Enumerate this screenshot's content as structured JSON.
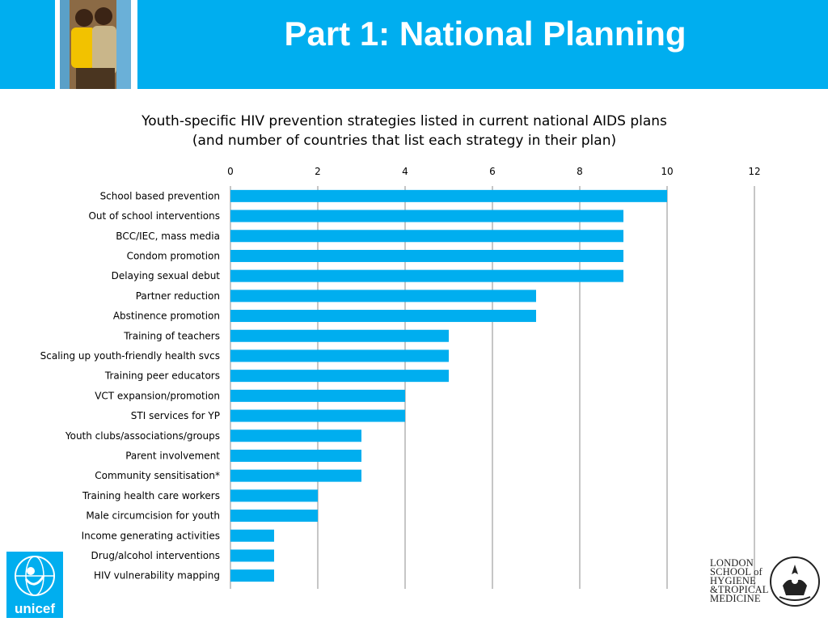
{
  "header": {
    "title": "Part 1: National Planning",
    "background_color": "#00aeef"
  },
  "chart_title": {
    "line1": "Youth-specific HIV prevention strategies listed in current national AIDS plans",
    "line2": "(and number of countries that list each strategy in their plan)"
  },
  "chart_data": {
    "type": "bar",
    "orientation": "horizontal",
    "title": "Youth-specific HIV prevention strategies listed in current national AIDS plans (and number of countries that list each strategy in their plan)",
    "categories": [
      "School based prevention",
      "Out of school interventions",
      "BCC/IEC, mass media",
      "Condom promotion",
      "Delaying sexual debut",
      "Partner reduction",
      "Abstinence promotion",
      "Training of teachers",
      "Scaling up youth-friendly health svcs",
      "Training peer educators",
      "VCT expansion/promotion",
      "STI services for  YP",
      "Youth clubs/associations/groups",
      "Parent involvement",
      "Community sensitisation*",
      "Training health care workers",
      "Male circumcision for youth",
      "Income generating activities",
      "Drug/alcohol interventions",
      "HIV vulnerability mapping"
    ],
    "values": [
      10,
      9,
      9,
      9,
      9,
      7,
      7,
      5,
      5,
      5,
      4,
      4,
      3,
      3,
      3,
      2,
      2,
      1,
      1,
      1
    ],
    "xlim": [
      0,
      12
    ],
    "ticks": [
      0,
      2,
      4,
      6,
      8,
      10,
      12
    ],
    "axis_position": "top",
    "grid": true,
    "bar_color": "#00aeef",
    "xlabel": "",
    "ylabel": ""
  },
  "logos": {
    "unicef_text": "unicef",
    "lshtm_lines": [
      "LONDON",
      "SCHOOL of",
      "HYGIENE",
      "&TROPICAL",
      "MEDICINE"
    ]
  }
}
